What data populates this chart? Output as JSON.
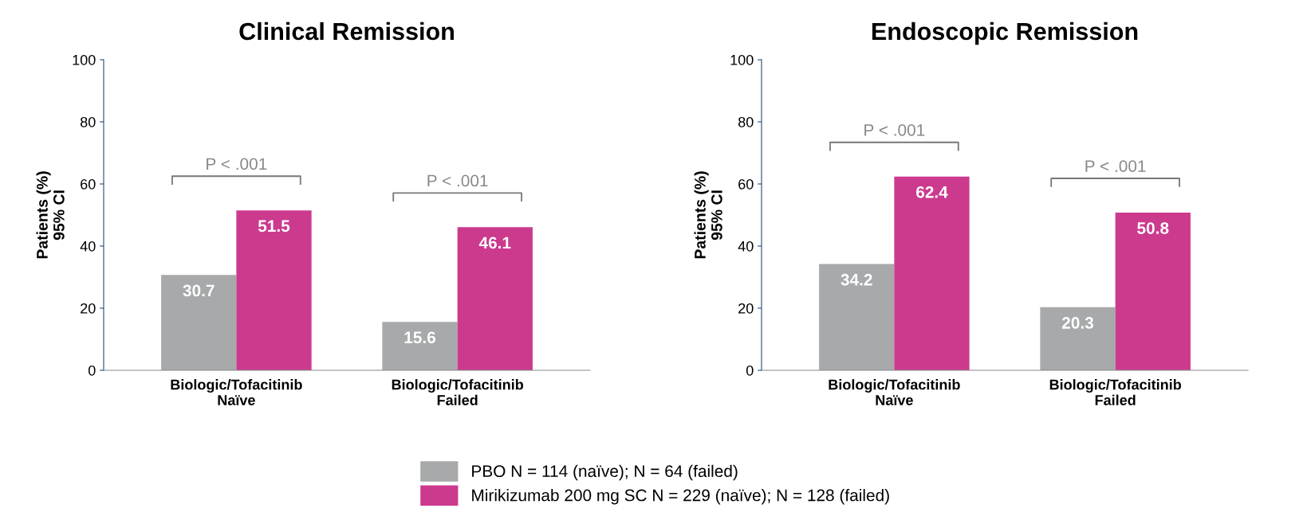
{
  "chart_data": [
    {
      "type": "bar",
      "title": "Clinical Remission",
      "ylabel": "Patients (%)\n95% CI",
      "categories": [
        "Biologic/Tofacitinib\nNaïve",
        "Biologic/Tofacitinib\nFailed"
      ],
      "series": [
        {
          "name": "PBO N = 114 (naïve); N = 64 (failed)",
          "color": "#a7a9aa",
          "values": [
            30.7,
            15.6
          ]
        },
        {
          "name": "Mirikizumab 200 mg SC N = 229 (naïve); N = 128 (failed)",
          "color": "#cc3a8e",
          "values": [
            51.5,
            46.1
          ]
        }
      ],
      "ylim": [
        0,
        100
      ],
      "yticks": [
        0,
        20,
        40,
        60,
        80,
        100
      ],
      "data_labels": true,
      "legend": "bottom",
      "annotations": [
        "P < .001",
        "P < .001"
      ]
    },
    {
      "type": "bar",
      "title": "Endoscopic Remission",
      "ylabel": "Patients (%)\n95% CI",
      "categories": [
        "Biologic/Tofacitinib\nNaïve",
        "Biologic/Tofacitinib\nFailed"
      ],
      "series": [
        {
          "color": "#a7a9aa",
          "values": [
            34.2,
            20.3
          ]
        },
        {
          "color": "#cc3a8e",
          "values": [
            62.4,
            50.8
          ]
        }
      ],
      "ylim": [
        0,
        100
      ],
      "yticks": [
        0,
        20,
        40,
        60,
        80,
        100
      ],
      "data_labels": true,
      "annotations": [
        "P < .001",
        "P < .001"
      ]
    }
  ]
}
